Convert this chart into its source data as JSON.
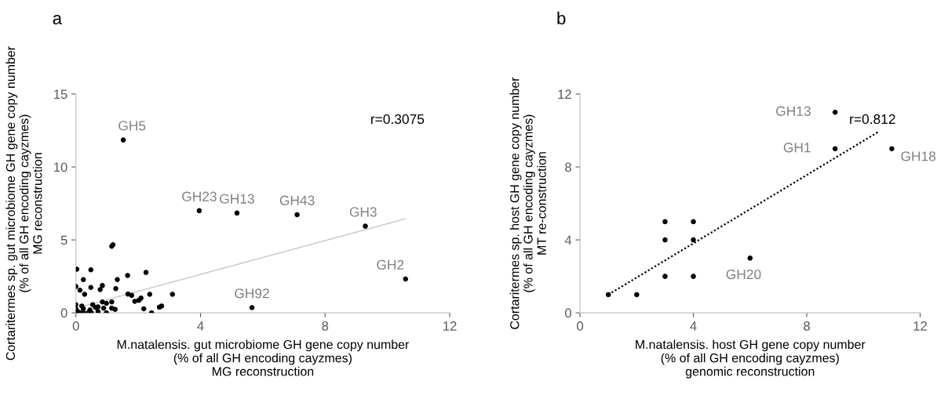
{
  "chart_data": [
    {
      "type": "scatter",
      "title": "a",
      "xlabel": "M.natalensis. gut microbiome GH gene copy number\n(% of all GH encoding cayzmes)\nMG reconstruction",
      "ylabel": "Cortaritermes sp. gut microbiome GH gene copy number\n(% of all GH encoding cayzmes)\nMG reconstruction",
      "xlim": [
        0,
        12
      ],
      "ylim": [
        0,
        15
      ],
      "xticks": [
        0,
        4,
        8,
        12
      ],
      "yticks": [
        0,
        5,
        10,
        15
      ],
      "grid": false,
      "series": [
        {
          "color": "#000000",
          "marker": "circle",
          "x": [
            1.52,
            3.96,
            5.17,
            7.1,
            9.29,
            10.58,
            5.65,
            1.15,
            1.19,
            0.03,
            0.48,
            0.24,
            0,
            0.13,
            0.28,
            0.48,
            0.85,
            0.78,
            1.33,
            1.28,
            1.66,
            2.25,
            1.67,
            1.79,
            1.89,
            2.02,
            2.09,
            2.37,
            3.1,
            2.18,
            2.43,
            2.68,
            2.75,
            1.15,
            0.85,
            0.98,
            1.15,
            1.26,
            0.89,
            0.71,
            0.98,
            0.54,
            0.63,
            0.71,
            0,
            0,
            0,
            0.19,
            0.24,
            0.15,
            0.39,
            0.45,
            0.5,
            0.06,
            0.24
          ],
          "values": [
            11.85,
            7.0,
            6.84,
            6.73,
            5.94,
            2.32,
            0.36,
            4.56,
            4.67,
            2.99,
            2.95,
            2.28,
            1.81,
            1.55,
            1.27,
            1.74,
            1.87,
            1.59,
            2.28,
            1.66,
            2.56,
            2.77,
            1.29,
            1.2,
            0.79,
            0.86,
            1.01,
            1.27,
            1.27,
            0.28,
            0,
            0.39,
            0.47,
            0.75,
            0.75,
            0.65,
            0.32,
            0.24,
            0.32,
            0.09,
            0,
            0.56,
            0.37,
            0.41,
            0.56,
            0.28,
            0,
            0.47,
            0.28,
            0,
            0,
            0.19,
            0,
            0.09,
            0
          ]
        },
        {
          "type": "line",
          "color": "#c8c8c8",
          "line_style": "solid",
          "x": [
            0.19,
            10.58
          ],
          "values": [
            0.43,
            6.45
          ]
        }
      ],
      "annotations": [
        {
          "text": "GH5",
          "x": 1.52,
          "y": 11.85
        },
        {
          "text": "GH23",
          "x": 3.96,
          "y": 7.0
        },
        {
          "text": "GH13",
          "x": 5.17,
          "y": 6.84
        },
        {
          "text": "GH43",
          "x": 7.1,
          "y": 6.73
        },
        {
          "text": "GH3",
          "x": 9.29,
          "y": 5.94
        },
        {
          "text": "GH2",
          "x": 10.58,
          "y": 2.32
        },
        {
          "text": "GH92",
          "x": 5.65,
          "y": 0.36
        },
        "r=0.3075"
      ]
    },
    {
      "type": "scatter",
      "title": "b",
      "xlabel": "M.natalensis. host GH gene copy number\n(% of all GH encoding cayzmes)\ngenomic reconstruction",
      "ylabel": "Cortaritermes sp. host GH gene copy number\n(% of all GH encoding cayzmes)\nMT re-construction",
      "xlim": [
        0,
        12
      ],
      "ylim": [
        0,
        12
      ],
      "xticks": [
        0,
        4,
        8,
        12
      ],
      "yticks": [
        0,
        4,
        8,
        12
      ],
      "grid": false,
      "series": [
        {
          "color": "#000000",
          "marker": "circle",
          "x": [
            1,
            2,
            3,
            3,
            3,
            4,
            4,
            4,
            6,
            9,
            9,
            11
          ],
          "values": [
            1,
            1,
            2,
            4,
            5,
            2,
            4,
            5,
            3,
            9,
            11,
            9
          ]
        },
        {
          "type": "line",
          "color": "#000000",
          "line_style": "dotted",
          "x": [
            1,
            10.5
          ],
          "values": [
            1,
            9.9
          ]
        }
      ],
      "annotations": [
        {
          "text": "GH13",
          "x": 9,
          "y": 11
        },
        {
          "text": "GH1",
          "x": 9,
          "y": 9
        },
        {
          "text": "GH18",
          "x": 11,
          "y": 9
        },
        {
          "text": "GH20",
          "x": 6,
          "y": 3
        },
        "r=0.812"
      ]
    }
  ]
}
